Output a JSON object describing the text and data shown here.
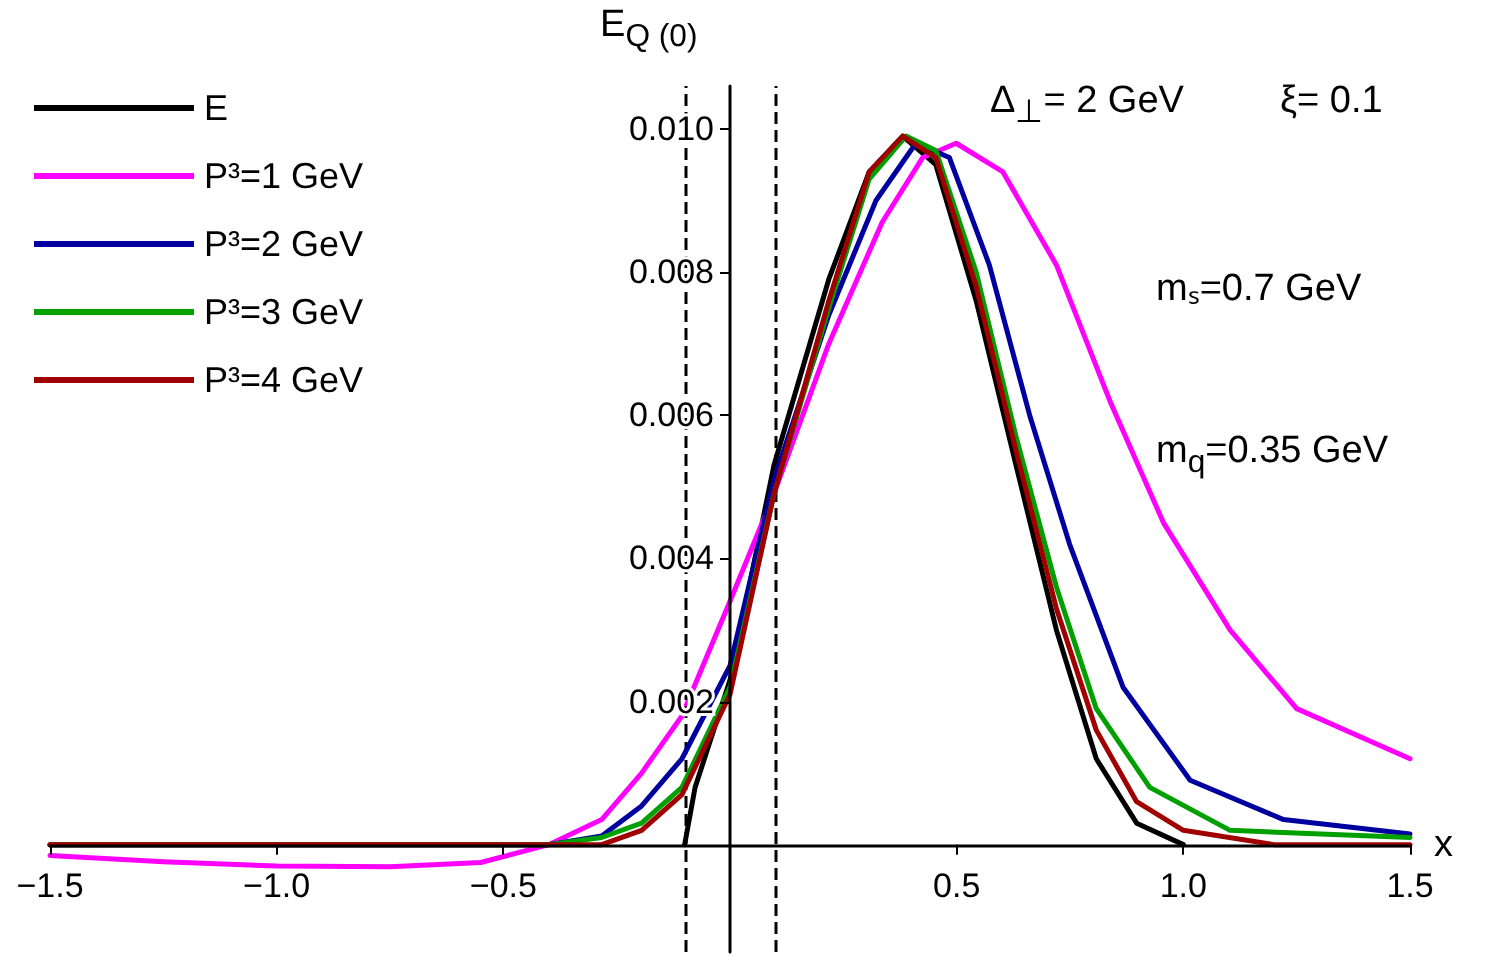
{
  "chart_data": {
    "type": "line",
    "xlabel": "x",
    "ylabel": "E$_{Q (0)}$",
    "xlim": [
      -1.5,
      1.5
    ],
    "ylim": [
      -0.0015,
      0.0106
    ],
    "xticks": [
      {
        "value": -1.5,
        "label": "−1.5"
      },
      {
        "value": -1,
        "label": "−1.0"
      },
      {
        "value": -0.5,
        "label": "−0.5"
      },
      {
        "value": 0.5,
        "label": "0.5"
      },
      {
        "value": 1,
        "label": "1.0"
      },
      {
        "value": 1.5,
        "label": "1.5"
      }
    ],
    "yticks": [
      0.002,
      0.004,
      0.006,
      0.008,
      {
        "value": 0.01,
        "label": "0.010"
      }
    ],
    "grid": false,
    "legend": "top left",
    "marker": "none",
    "line_style": "solid",
    "ref_lines": [
      {
        "axis": "x",
        "value": -0.1,
        "color": "#000000",
        "line_style": "dashed"
      },
      {
        "axis": "x",
        "value": 0.1,
        "color": "#000000",
        "line_style": "dashed"
      }
    ],
    "annotations": [
      "Δ$_{⊥}$= 2 GeV",
      "ξ= 0.1",
      "mₛ=0.7 GeV",
      "m$_{q}$=0.35 GeV"
    ],
    "series": [
      {
        "name": "E",
        "color": "#000000",
        "x": [
          -0.1,
          -0.077,
          0,
          0.097,
          0.218,
          0.307,
          0.381,
          0.454,
          0.543,
          0.631,
          0.72,
          0.808,
          0.897,
          1.0
        ],
        "values": [
          0,
          0.0008,
          0.0023,
          0.0053,
          0.0079,
          0.0094,
          0.0099,
          0.0095,
          0.0076,
          0.0053,
          0.003,
          0.0012,
          0.0003,
          0
        ]
      },
      {
        "name": "P³=1 GeV",
        "color": "#ff00ff",
        "x": [
          -1.5,
          -1.25,
          -1.0,
          -0.75,
          -0.55,
          -0.4,
          -0.283,
          -0.195,
          -0.106,
          0,
          0.097,
          0.218,
          0.336,
          0.425,
          0.499,
          0.602,
          0.72,
          0.838,
          0.956,
          1.103,
          1.25,
          1.5
        ],
        "values": [
          -0.00015,
          -0.00024,
          -0.0003,
          -0.00031,
          -0.00025,
          0,
          0.00035,
          0.001,
          0.0018,
          0.0034,
          0.0049,
          0.007,
          0.0087,
          0.0096,
          0.0098,
          0.0094,
          0.0081,
          0.0062,
          0.0045,
          0.003,
          0.0019,
          0.0012
        ]
      },
      {
        "name": "P³=2 GeV",
        "color": "#0000a0",
        "x": [
          -1.5,
          -0.4,
          -0.283,
          -0.195,
          -0.106,
          0,
          0.097,
          0.218,
          0.322,
          0.41,
          0.484,
          0.572,
          0.661,
          0.749,
          0.867,
          1.015,
          1.221,
          1.5
        ],
        "values": [
          0,
          0,
          0.00012,
          0.00054,
          0.0012,
          0.0025,
          0.0051,
          0.0074,
          0.009,
          0.0098,
          0.0096,
          0.0081,
          0.006,
          0.0042,
          0.0022,
          0.0009,
          0.00035,
          0.00015
        ]
      },
      {
        "name": "P³=3 GeV",
        "color": "#00a000",
        "x": [
          -1.5,
          -0.4,
          -0.283,
          -0.195,
          -0.106,
          0,
          0.097,
          0.218,
          0.307,
          0.388,
          0.454,
          0.543,
          0.631,
          0.72,
          0.808,
          0.926,
          1.103,
          1.5
        ],
        "values": [
          0,
          0,
          0.0001,
          0.0003,
          0.0008,
          0.0022,
          0.0049,
          0.0075,
          0.0093,
          0.0099,
          0.0097,
          0.008,
          0.0057,
          0.0036,
          0.0019,
          0.0008,
          0.0002,
          0.0001
        ]
      },
      {
        "name": "P³=4 GeV",
        "color": "#a00000",
        "x": [
          -1.5,
          -0.4,
          -0.283,
          -0.195,
          -0.106,
          0,
          0.097,
          0.218,
          0.307,
          0.381,
          0.454,
          0.543,
          0.631,
          0.72,
          0.808,
          0.897,
          1.0,
          1.2,
          1.5
        ],
        "values": [
          0,
          0,
          0,
          0.0002,
          0.0007,
          0.0021,
          0.0049,
          0.0076,
          0.0094,
          0.0099,
          0.0096,
          0.0078,
          0.0055,
          0.0033,
          0.0016,
          0.0006,
          0.0002,
          0,
          0
        ]
      }
    ]
  }
}
